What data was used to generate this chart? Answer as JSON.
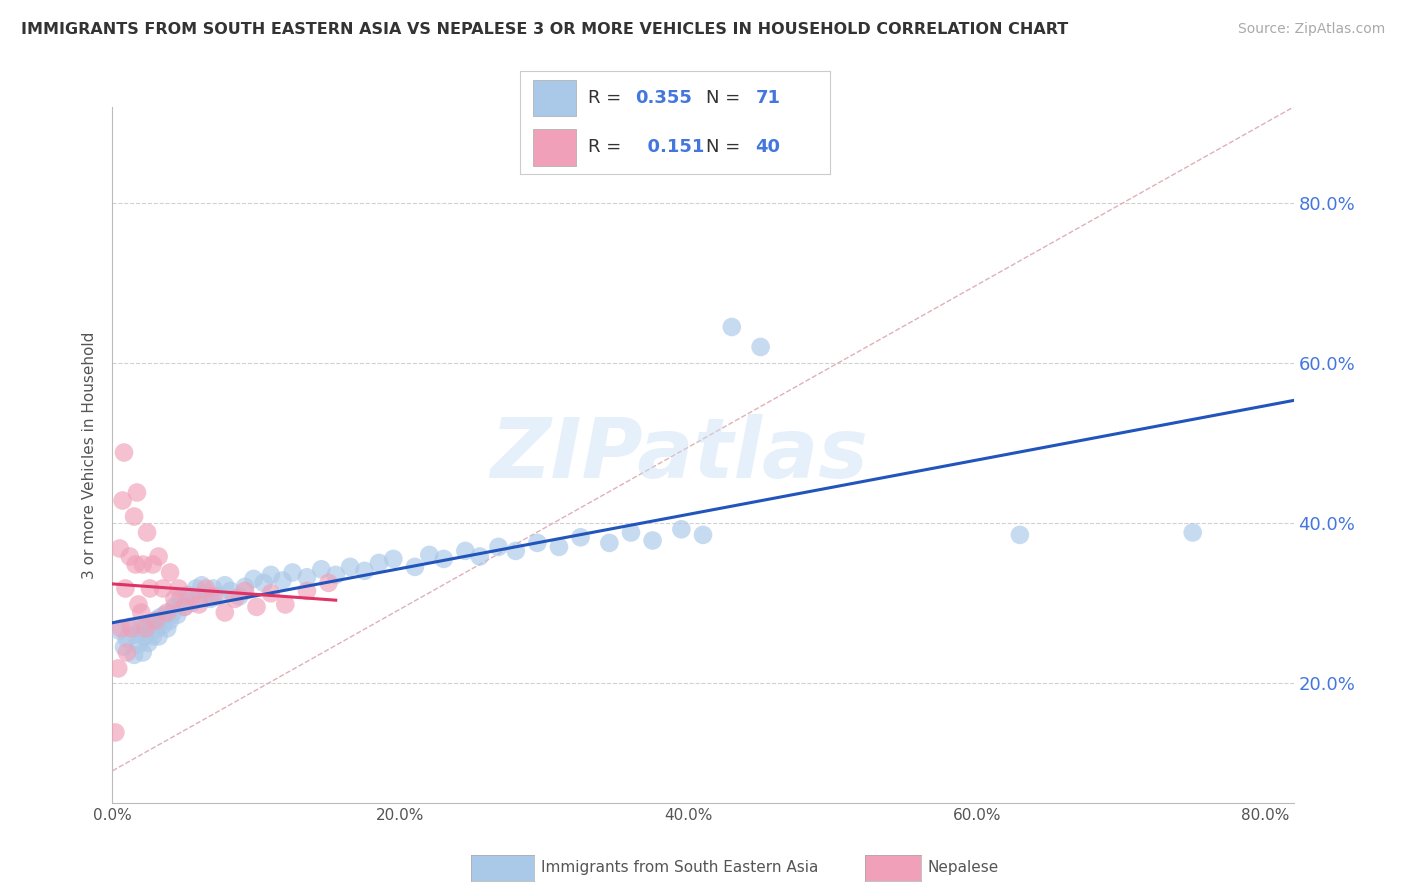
{
  "title": "IMMIGRANTS FROM SOUTH EASTERN ASIA VS NEPALESE 3 OR MORE VEHICLES IN HOUSEHOLD CORRELATION CHART",
  "source": "Source: ZipAtlas.com",
  "ylabel": "3 or more Vehicles in Household",
  "xlim": [
    0.0,
    0.82
  ],
  "ylim": [
    0.05,
    0.92
  ],
  "xtick_values": [
    0.0,
    0.2,
    0.4,
    0.6,
    0.8
  ],
  "ytick_values": [
    0.2,
    0.4,
    0.6,
    0.8
  ],
  "background_color": "#ffffff",
  "grid_color": "#cccccc",
  "blue_color": "#aac8e8",
  "pink_color": "#f0a0b8",
  "blue_line_color": "#2255bb",
  "pink_line_color": "#dd3366",
  "diag_color": "#e0b0b8",
  "legend_R1": "0.355",
  "legend_N1": "71",
  "legend_R2": "0.151",
  "legend_N2": "40",
  "legend_label1": "Immigrants from South Eastern Asia",
  "legend_label2": "Nepalese",
  "watermark": "ZIPatlas",
  "blue_x": [
    0.005,
    0.008,
    0.01,
    0.012,
    0.015,
    0.016,
    0.018,
    0.02,
    0.021,
    0.022,
    0.023,
    0.025,
    0.026,
    0.028,
    0.03,
    0.031,
    0.032,
    0.033,
    0.035,
    0.036,
    0.038,
    0.04,
    0.042,
    0.043,
    0.045,
    0.047,
    0.05,
    0.052,
    0.055,
    0.058,
    0.06,
    0.062,
    0.065,
    0.068,
    0.07,
    0.073,
    0.078,
    0.082,
    0.088,
    0.092,
    0.098,
    0.105,
    0.11,
    0.118,
    0.125,
    0.135,
    0.145,
    0.155,
    0.165,
    0.175,
    0.185,
    0.195,
    0.21,
    0.22,
    0.23,
    0.245,
    0.255,
    0.268,
    0.28,
    0.295,
    0.31,
    0.325,
    0.345,
    0.36,
    0.375,
    0.395,
    0.41,
    0.43,
    0.45,
    0.63,
    0.75
  ],
  "blue_y": [
    0.265,
    0.245,
    0.255,
    0.27,
    0.235,
    0.26,
    0.248,
    0.268,
    0.238,
    0.258,
    0.272,
    0.25,
    0.275,
    0.258,
    0.278,
    0.268,
    0.258,
    0.282,
    0.272,
    0.285,
    0.268,
    0.278,
    0.288,
    0.295,
    0.285,
    0.305,
    0.295,
    0.31,
    0.3,
    0.318,
    0.308,
    0.322,
    0.312,
    0.305,
    0.318,
    0.308,
    0.322,
    0.315,
    0.308,
    0.32,
    0.33,
    0.325,
    0.335,
    0.328,
    0.338,
    0.332,
    0.342,
    0.335,
    0.345,
    0.34,
    0.35,
    0.355,
    0.345,
    0.36,
    0.355,
    0.365,
    0.358,
    0.37,
    0.365,
    0.375,
    0.37,
    0.382,
    0.375,
    0.388,
    0.378,
    0.392,
    0.385,
    0.645,
    0.62,
    0.385,
    0.388
  ],
  "pink_x": [
    0.002,
    0.004,
    0.005,
    0.006,
    0.007,
    0.008,
    0.009,
    0.01,
    0.012,
    0.013,
    0.015,
    0.016,
    0.017,
    0.018,
    0.02,
    0.021,
    0.023,
    0.024,
    0.026,
    0.028,
    0.03,
    0.032,
    0.035,
    0.038,
    0.04,
    0.043,
    0.046,
    0.05,
    0.055,
    0.06,
    0.065,
    0.07,
    0.078,
    0.085,
    0.092,
    0.1,
    0.11,
    0.12,
    0.135,
    0.15
  ],
  "pink_y": [
    0.138,
    0.218,
    0.368,
    0.268,
    0.428,
    0.488,
    0.318,
    0.238,
    0.358,
    0.268,
    0.408,
    0.348,
    0.438,
    0.298,
    0.288,
    0.348,
    0.268,
    0.388,
    0.318,
    0.348,
    0.278,
    0.358,
    0.318,
    0.288,
    0.338,
    0.305,
    0.318,
    0.295,
    0.308,
    0.298,
    0.318,
    0.308,
    0.288,
    0.305,
    0.315,
    0.295,
    0.312,
    0.298,
    0.315,
    0.325
  ]
}
